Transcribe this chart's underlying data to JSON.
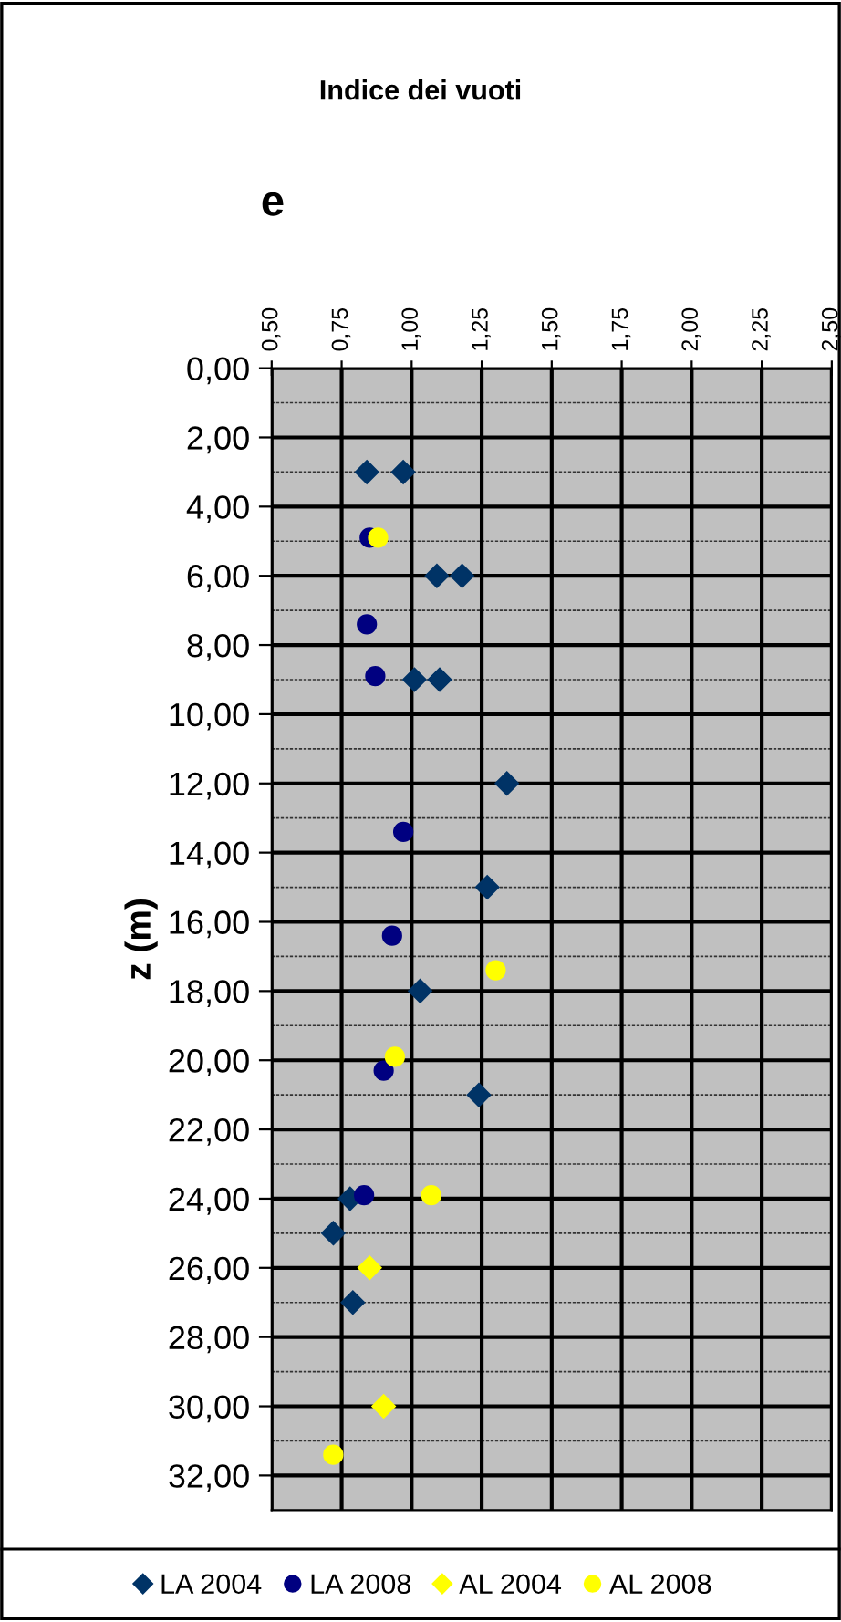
{
  "chart_data": {
    "type": "scatter",
    "title": "Indice dei vuoti",
    "xlabel": "e",
    "ylabel": "z (m)",
    "xlim": [
      0.5,
      2.5
    ],
    "xticks": [
      {
        "value": 0.5,
        "label": "0,50"
      },
      {
        "value": 0.75,
        "label": "0,75"
      },
      {
        "value": 1.0,
        "label": "1,00"
      },
      {
        "value": 1.25,
        "label": "1,25"
      },
      {
        "value": 1.5,
        "label": "1,50"
      },
      {
        "value": 1.75,
        "label": "1,75"
      },
      {
        "value": 2.0,
        "label": "2,00"
      },
      {
        "value": 2.25,
        "label": "2,25"
      },
      {
        "value": 2.5,
        "label": "2,50"
      }
    ],
    "ylim": [
      33,
      0
    ],
    "yticks": [
      {
        "value": 0,
        "label": "0,00"
      },
      {
        "value": 2,
        "label": "2,00"
      },
      {
        "value": 4,
        "label": "4,00"
      },
      {
        "value": 6,
        "label": "6,00"
      },
      {
        "value": 8,
        "label": "8,00"
      },
      {
        "value": 10,
        "label": "10,00"
      },
      {
        "value": 12,
        "label": "12,00"
      },
      {
        "value": 14,
        "label": "14,00"
      },
      {
        "value": 16,
        "label": "16,00"
      },
      {
        "value": 18,
        "label": "18,00"
      },
      {
        "value": 20,
        "label": "20,00"
      },
      {
        "value": 22,
        "label": "22,00"
      },
      {
        "value": 24,
        "label": "24,00"
      },
      {
        "value": 26,
        "label": "26,00"
      },
      {
        "value": 28,
        "label": "28,00"
      },
      {
        "value": 30,
        "label": "30,00"
      },
      {
        "value": 32,
        "label": "32,00"
      }
    ],
    "grid": true,
    "legend": "bottom",
    "series": [
      {
        "name": "LA 2004",
        "color": "#003366",
        "marker": "diamond",
        "x": [
          0.84,
          0.97,
          1.09,
          1.18,
          1.01,
          1.1,
          1.34,
          1.27,
          1.03,
          1.24,
          0.78,
          0.72,
          0.79
        ],
        "values": [
          3.0,
          3.0,
          6.0,
          6.0,
          9.0,
          9.0,
          12.0,
          15.0,
          18.0,
          21.0,
          24.0,
          25.0,
          27.0
        ]
      },
      {
        "name": "LA 2008",
        "color": "#000080",
        "marker": "circle",
        "x": [
          0.85,
          0.84,
          0.87,
          0.97,
          0.93,
          0.9,
          0.83
        ],
        "values": [
          4.9,
          7.4,
          8.9,
          13.4,
          16.4,
          20.3,
          23.9
        ]
      },
      {
        "name": "AL 2004",
        "color": "#ffff00",
        "marker": "diamond",
        "x": [
          0.85,
          0.9
        ],
        "values": [
          26.0,
          30.0
        ]
      },
      {
        "name": "AL 2008",
        "color": "#ffff00",
        "marker": "circle",
        "x": [
          0.88,
          1.3,
          0.94,
          1.07,
          0.72
        ],
        "values": [
          4.9,
          17.4,
          19.9,
          23.9,
          31.4
        ]
      }
    ]
  }
}
